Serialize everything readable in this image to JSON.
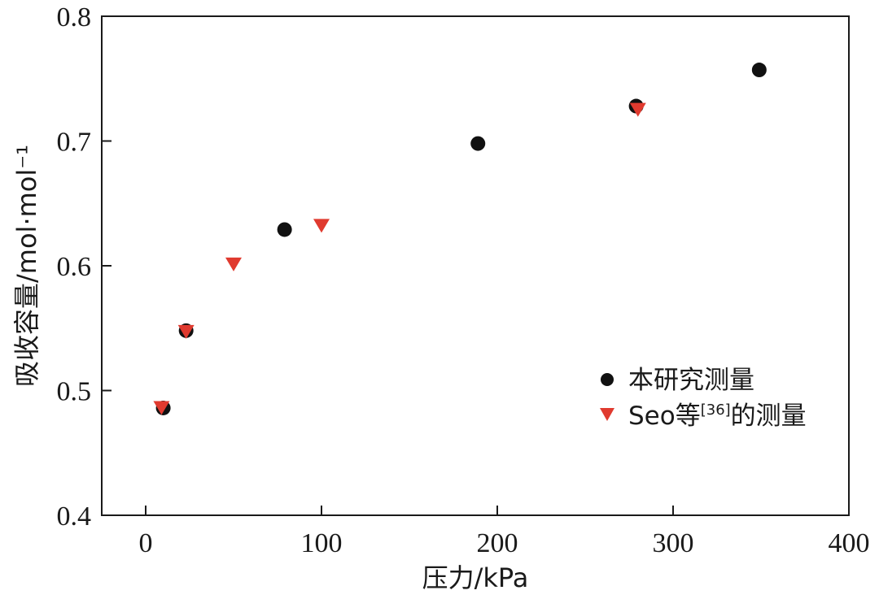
{
  "chart_data": {
    "type": "scatter",
    "xlabel": "压力/kPa",
    "ylabel": "吸收容量/mol·mol⁻¹",
    "xlim": [
      -25,
      400
    ],
    "ylim": [
      0.4,
      0.8
    ],
    "xticks": [
      "0",
      "100",
      "200",
      "300",
      "400"
    ],
    "yticks": [
      "0.4",
      "0.5",
      "0.6",
      "0.7",
      "0.8"
    ],
    "grid": false,
    "legend_position": "center-right",
    "series": [
      {
        "name": "本研究测量",
        "marker": "circle",
        "color": "#111111",
        "points": [
          {
            "x": 10,
            "y": 0.486
          },
          {
            "x": 23,
            "y": 0.548
          },
          {
            "x": 79,
            "y": 0.629
          },
          {
            "x": 189,
            "y": 0.698
          },
          {
            "x": 279,
            "y": 0.728
          },
          {
            "x": 349,
            "y": 0.757
          }
        ]
      },
      {
        "name": "Seo等[36]的测量",
        "name_parts": {
          "prefix": "Seo等",
          "superscript": "[36]",
          "suffix": "的测量"
        },
        "marker": "triangle-down",
        "color": "#e03a2f",
        "points": [
          {
            "x": 9,
            "y": 0.487
          },
          {
            "x": 23,
            "y": 0.548
          },
          {
            "x": 50,
            "y": 0.602
          },
          {
            "x": 100,
            "y": 0.633
          },
          {
            "x": 280,
            "y": 0.726
          }
        ]
      }
    ]
  }
}
